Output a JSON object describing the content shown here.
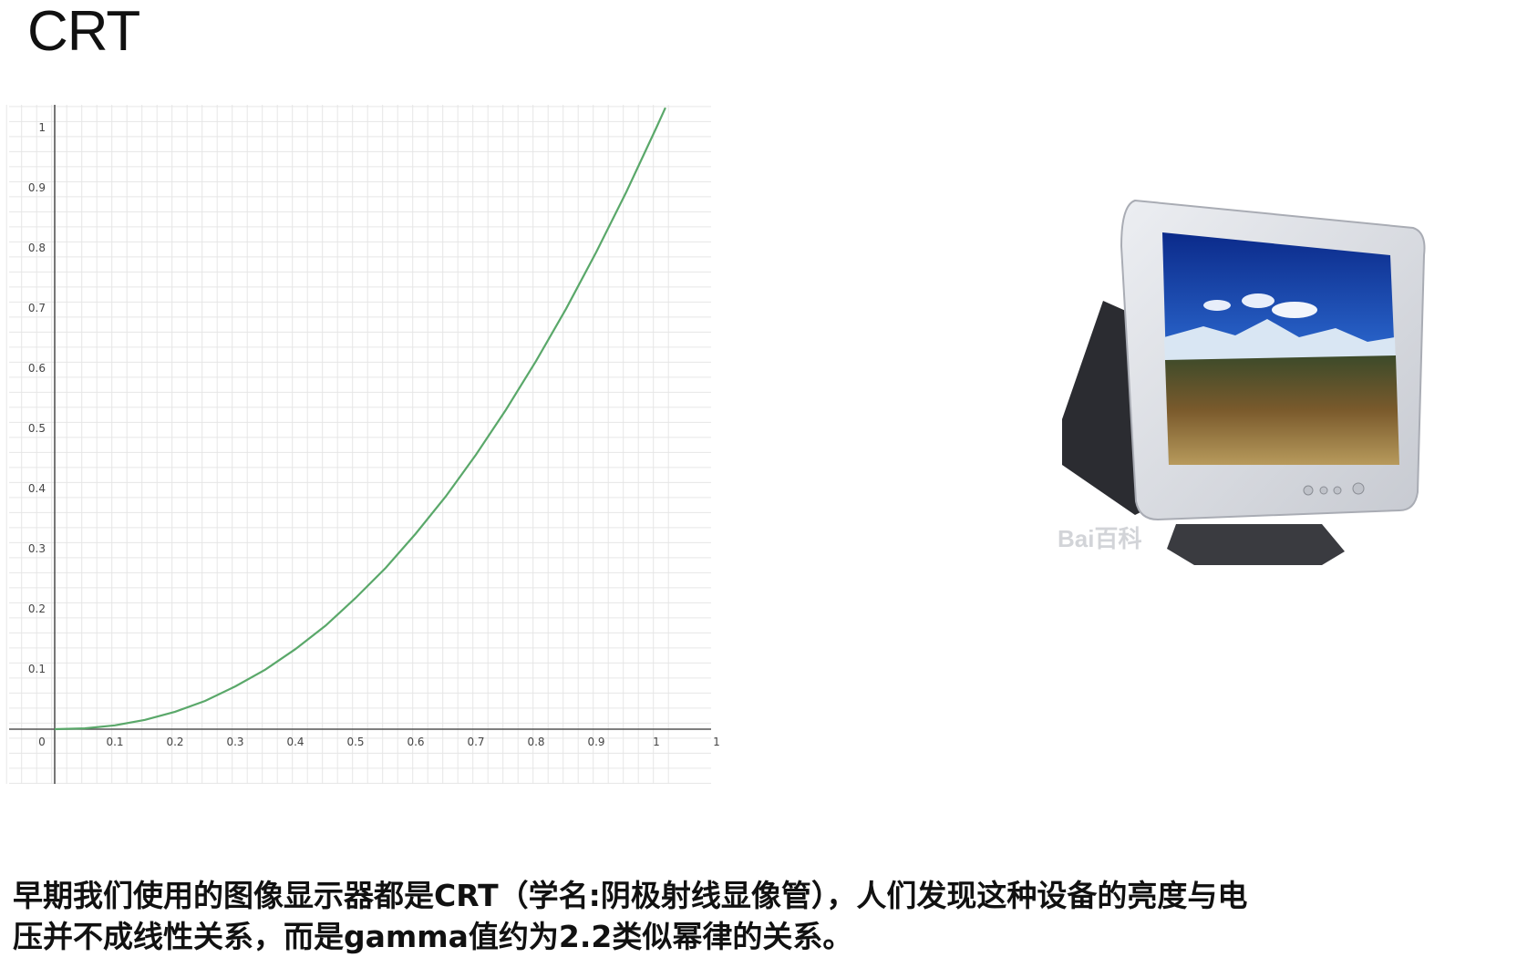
{
  "slide": {
    "title": "CRT"
  },
  "chart_data": {
    "type": "line",
    "title": "",
    "xlabel": "",
    "ylabel": "",
    "xlim": [
      -0.08,
      1.04
    ],
    "ylim": [
      -0.09,
      1.04
    ],
    "grid": true,
    "x_tick_labels": [
      "0",
      "0.1",
      "0.2",
      "0.3",
      "0.4",
      "0.5",
      "0.6",
      "0.7",
      "0.8",
      "0.9",
      "1",
      "1"
    ],
    "y_tick_labels": [
      "0.1",
      "0.2",
      "0.3",
      "0.4",
      "0.5",
      "0.6",
      "0.7",
      "0.8",
      "0.9",
      "1"
    ],
    "series": [
      {
        "color": "#5aa86a",
        "x": [
          0,
          0.05,
          0.1,
          0.15,
          0.2,
          0.25,
          0.3,
          0.35,
          0.4,
          0.45,
          0.5,
          0.55,
          0.6,
          0.65,
          0.7,
          0.75,
          0.8,
          0.85,
          0.9,
          0.95,
          1.0,
          1.015
        ],
        "y": [
          0,
          0.0014,
          0.0063,
          0.0154,
          0.029,
          0.047,
          0.071,
          0.099,
          0.133,
          0.172,
          0.218,
          0.268,
          0.325,
          0.387,
          0.456,
          0.531,
          0.612,
          0.699,
          0.793,
          0.893,
          1.0,
          1.033
        ]
      }
    ]
  },
  "image": {
    "alt": "CRT monitor photo",
    "watermark": "Bai百科"
  },
  "caption": {
    "line1": "早期我们使用的图像显示器都是CRT（学名:阴极射线显像管），人们发现这种设备的亮度与电",
    "line2": "压并不成线性关系，而是gamma值约为2.2类似幂律的关系。"
  }
}
